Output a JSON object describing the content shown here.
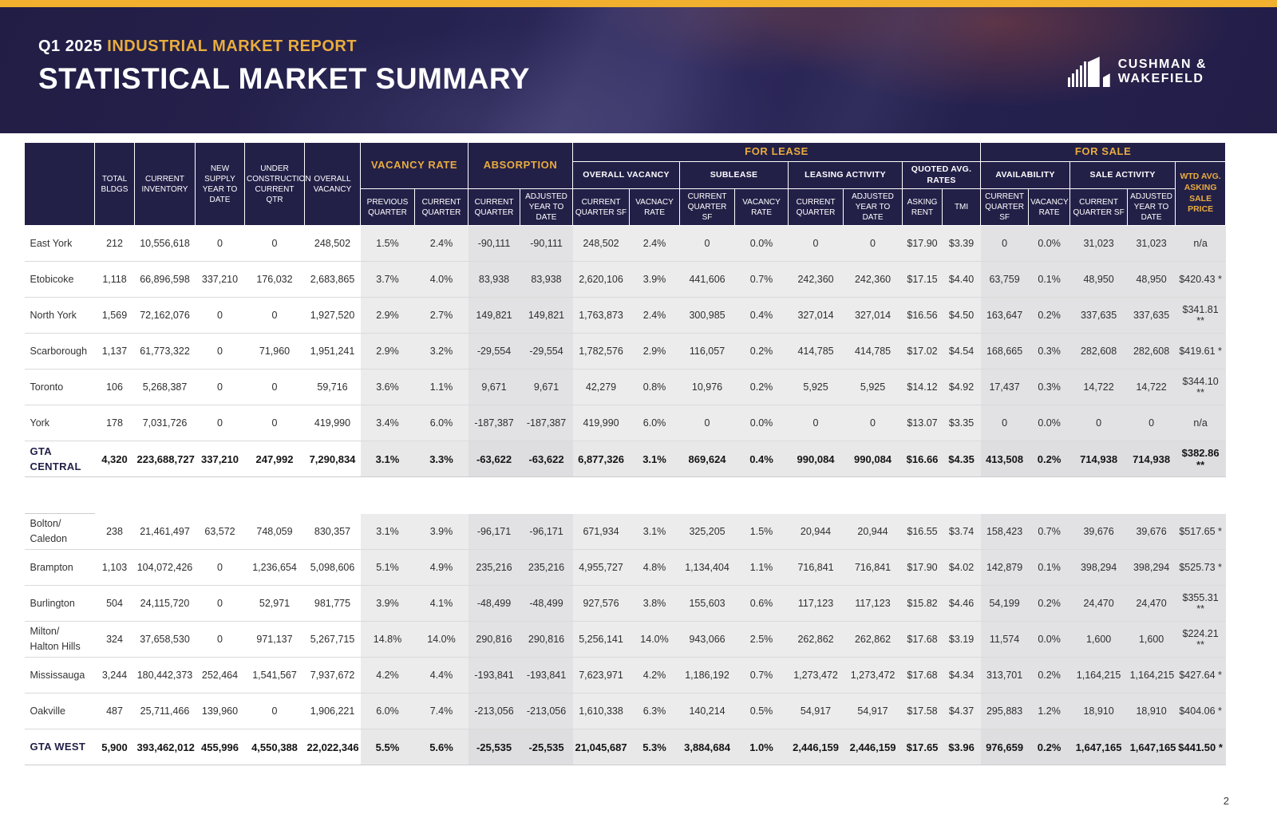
{
  "page": {
    "number": "2"
  },
  "header": {
    "kicker_prefix": "Q1 2025 ",
    "kicker_label": "INDUSTRIAL MARKET REPORT",
    "title": "STATISTICAL MARKET SUMMARY",
    "logo_line1": "CUSHMAN &",
    "logo_line2": "WAKEFIELD"
  },
  "colors": {
    "navy": "#232048",
    "gold": "#F2B02F",
    "gold_text": "#E9AC3D",
    "shade_light": "#ececec",
    "shade_dark": "#e2e2e4"
  },
  "table": {
    "header": {
      "left_columns": [
        "TOTAL BLDGS",
        "CURRENT INVENTORY",
        "NEW SUPPLY YEAR TO DATE",
        "UNDER CONSTRUCTION CURRENT QTR",
        "OVERALL VACANCY"
      ],
      "vacancy_rate": {
        "label": "VACANCY RATE",
        "subs": [
          "PREVIOUS QUARTER",
          "CURRENT QUARTER"
        ]
      },
      "absorption": {
        "label": "ABSORPTION",
        "subs": [
          "CURRENT QUARTER",
          "ADJUSTED YEAR TO DATE"
        ]
      },
      "for_lease": {
        "label": "FOR LEASE",
        "sections": [
          {
            "label": "OVERALL VACANCY",
            "subs": [
              "CURRENT QUARTER SF",
              "VACNACY RATE"
            ]
          },
          {
            "label": "SUBLEASE",
            "subs": [
              "CURRENT QUARTER SF",
              "VACANCY RATE"
            ]
          },
          {
            "label": "LEASING ACTIVITY",
            "subs": [
              "CURRENT QUARTER",
              "ADJUSTED YEAR TO DATE"
            ]
          },
          {
            "label": "QUOTED AVG. RATES",
            "subs": [
              "ASKING RENT",
              "TMI"
            ]
          }
        ]
      },
      "for_sale": {
        "label": "FOR SALE",
        "sections": [
          {
            "label": "AVAILABILITY",
            "subs": [
              "CURRENT QUARTER SF",
              "VACANCY RATE"
            ]
          },
          {
            "label": "SALE ACTIVITY",
            "subs": [
              "CURRENT QUARTER SF",
              "ADJUSTED YEAR TO DATE"
            ]
          }
        ],
        "wtd_label": "WTD AVG. ASKING SALE PRICE"
      }
    },
    "sections": [
      {
        "rows": [
          {
            "name": "East York",
            "values": [
              "212",
              "10,556,618",
              "0",
              "0",
              "248,502",
              "1.5%",
              "2.4%",
              "-90,111",
              "-90,111",
              "248,502",
              "2.4%",
              "0",
              "0.0%",
              "0",
              "0",
              "$17.90",
              "$3.39",
              "0",
              "0.0%",
              "31,023",
              "31,023",
              "n/a"
            ]
          },
          {
            "name": "Etobicoke",
            "values": [
              "1,118",
              "66,896,598",
              "337,210",
              "176,032",
              "2,683,865",
              "3.7%",
              "4.0%",
              "83,938",
              "83,938",
              "2,620,106",
              "3.9%",
              "441,606",
              "0.7%",
              "242,360",
              "242,360",
              "$17.15",
              "$4.40",
              "63,759",
              "0.1%",
              "48,950",
              "48,950",
              "$420.43 *"
            ]
          },
          {
            "name": "North York",
            "values": [
              "1,569",
              "72,162,076",
              "0",
              "0",
              "1,927,520",
              "2.9%",
              "2.7%",
              "149,821",
              "149,821",
              "1,763,873",
              "2.4%",
              "300,985",
              "0.4%",
              "327,014",
              "327,014",
              "$16.56",
              "$4.50",
              "163,647",
              "0.2%",
              "337,635",
              "337,635",
              "$341.81 **"
            ]
          },
          {
            "name": "Scarborough",
            "values": [
              "1,137",
              "61,773,322",
              "0",
              "71,960",
              "1,951,241",
              "2.9%",
              "3.2%",
              "-29,554",
              "-29,554",
              "1,782,576",
              "2.9%",
              "116,057",
              "0.2%",
              "414,785",
              "414,785",
              "$17.02",
              "$4.54",
              "168,665",
              "0.3%",
              "282,608",
              "282,608",
              "$419.61 *"
            ]
          },
          {
            "name": "Toronto",
            "values": [
              "106",
              "5,268,387",
              "0",
              "0",
              "59,716",
              "3.6%",
              "1.1%",
              "9,671",
              "9,671",
              "42,279",
              "0.8%",
              "10,976",
              "0.2%",
              "5,925",
              "5,925",
              "$14.12",
              "$4.92",
              "17,437",
              "0.3%",
              "14,722",
              "14,722",
              "$344.10 **"
            ]
          },
          {
            "name": "York",
            "values": [
              "178",
              "7,031,726",
              "0",
              "0",
              "419,990",
              "3.4%",
              "6.0%",
              "-187,387",
              "-187,387",
              "419,990",
              "6.0%",
              "0",
              "0.0%",
              "0",
              "0",
              "$13.07",
              "$3.35",
              "0",
              "0.0%",
              "0",
              "0",
              "n/a"
            ]
          }
        ],
        "total": {
          "name": "GTA CENTRAL",
          "values": [
            "4,320",
            "223,688,727",
            "337,210",
            "247,992",
            "7,290,834",
            "3.1%",
            "3.3%",
            "-63,622",
            "-63,622",
            "6,877,326",
            "3.1%",
            "869,624",
            "0.4%",
            "990,084",
            "990,084",
            "$16.66",
            "$4.35",
            "413,508",
            "0.2%",
            "714,938",
            "714,938",
            "$382.86 **"
          ]
        }
      },
      {
        "rows": [
          {
            "name": "Bolton/\nCaledon",
            "values": [
              "238",
              "21,461,497",
              "63,572",
              "748,059",
              "830,357",
              "3.1%",
              "3.9%",
              "-96,171",
              "-96,171",
              "671,934",
              "3.1%",
              "325,205",
              "1.5%",
              "20,944",
              "20,944",
              "$16.55",
              "$3.74",
              "158,423",
              "0.7%",
              "39,676",
              "39,676",
              "$517.65 *"
            ]
          },
          {
            "name": "Brampton",
            "values": [
              "1,103",
              "104,072,426",
              "0",
              "1,236,654",
              "5,098,606",
              "5.1%",
              "4.9%",
              "235,216",
              "235,216",
              "4,955,727",
              "4.8%",
              "1,134,404",
              "1.1%",
              "716,841",
              "716,841",
              "$17.90",
              "$4.02",
              "142,879",
              "0.1%",
              "398,294",
              "398,294",
              "$525.73 *"
            ]
          },
          {
            "name": "Burlington",
            "values": [
              "504",
              "24,115,720",
              "0",
              "52,971",
              "981,775",
              "3.9%",
              "4.1%",
              "-48,499",
              "-48,499",
              "927,576",
              "3.8%",
              "155,603",
              "0.6%",
              "117,123",
              "117,123",
              "$15.82",
              "$4.46",
              "54,199",
              "0.2%",
              "24,470",
              "24,470",
              "$355.31 **"
            ]
          },
          {
            "name": "Milton/\nHalton Hills",
            "values": [
              "324",
              "37,658,530",
              "0",
              "971,137",
              "5,267,715",
              "14.8%",
              "14.0%",
              "290,816",
              "290,816",
              "5,256,141",
              "14.0%",
              "943,066",
              "2.5%",
              "262,862",
              "262,862",
              "$17.68",
              "$3.19",
              "11,574",
              "0.0%",
              "1,600",
              "1,600",
              "$224.21 **"
            ]
          },
          {
            "name": "Mississauga",
            "values": [
              "3,244",
              "180,442,373",
              "252,464",
              "1,541,567",
              "7,937,672",
              "4.2%",
              "4.4%",
              "-193,841",
              "-193,841",
              "7,623,971",
              "4.2%",
              "1,186,192",
              "0.7%",
              "1,273,472",
              "1,273,472",
              "$17.68",
              "$4.34",
              "313,701",
              "0.2%",
              "1,164,215",
              "1,164,215",
              "$427.64 *"
            ]
          },
          {
            "name": "Oakville",
            "values": [
              "487",
              "25,711,466",
              "139,960",
              "0",
              "1,906,221",
              "6.0%",
              "7.4%",
              "-213,056",
              "-213,056",
              "1,610,338",
              "6.3%",
              "140,214",
              "0.5%",
              "54,917",
              "54,917",
              "$17.58",
              "$4.37",
              "295,883",
              "1.2%",
              "18,910",
              "18,910",
              "$404.06 *"
            ]
          }
        ],
        "total": {
          "name": "GTA WEST",
          "values": [
            "5,900",
            "393,462,012",
            "455,996",
            "4,550,388",
            "22,022,346",
            "5.5%",
            "5.6%",
            "-25,535",
            "-25,535",
            "21,045,687",
            "5.3%",
            "3,884,684",
            "1.0%",
            "2,446,159",
            "2,446,159",
            "$17.65",
            "$3.96",
            "976,659",
            "0.2%",
            "1,647,165",
            "1,647,165",
            "$441.50 *"
          ]
        }
      }
    ]
  }
}
